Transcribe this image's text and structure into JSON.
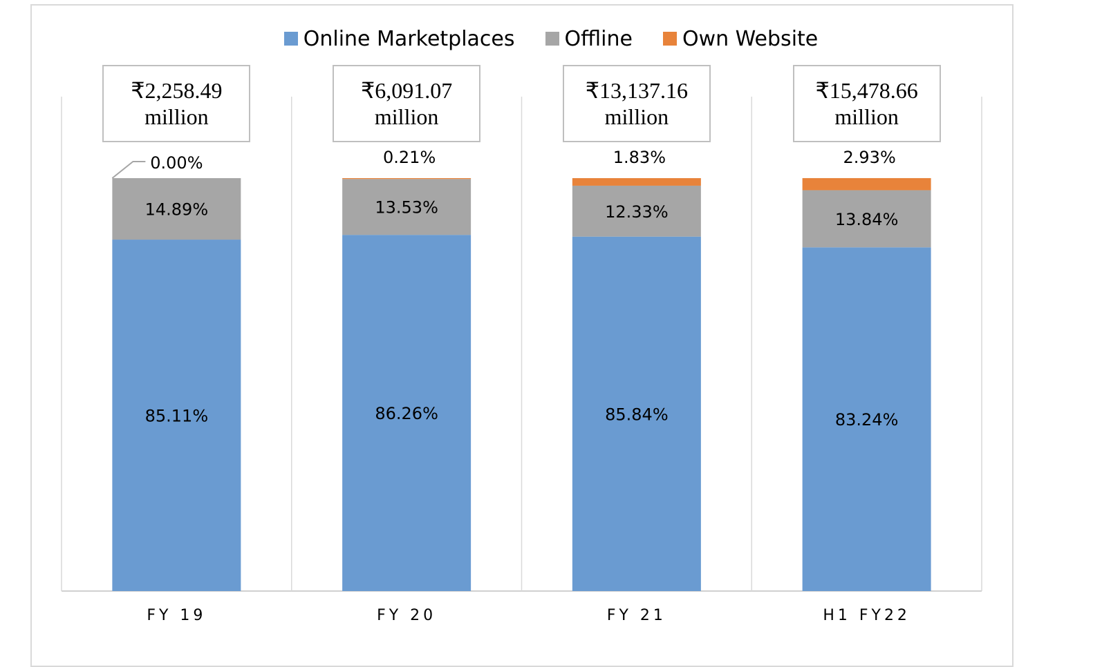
{
  "chart_data": {
    "type": "bar",
    "stacked": true,
    "normalized_percent": true,
    "categories": [
      "FY 19",
      "FY 20",
      "FY 21",
      "H1 FY22"
    ],
    "series": [
      {
        "name": "Online Marketplaces",
        "color": "#6a9bd1",
        "values": [
          85.11,
          86.26,
          85.84,
          83.24
        ],
        "labels": [
          "85.11%",
          "86.26%",
          "85.84%",
          "83.24%"
        ]
      },
      {
        "name": "Offline",
        "color": "#a6a6a6",
        "values": [
          14.89,
          13.53,
          12.33,
          13.84
        ],
        "labels": [
          "14.89%",
          "13.53%",
          "12.33%",
          "13.84%"
        ]
      },
      {
        "name": "Own Website",
        "color": "#e8833a",
        "values": [
          0.0,
          0.21,
          1.83,
          2.93
        ],
        "labels": [
          "0.00%",
          "0.21%",
          "1.83%",
          "2.93%"
        ]
      }
    ],
    "totals": [
      {
        "amount": "₹2,258.49",
        "unit": "million"
      },
      {
        "amount": "₹6,091.07",
        "unit": "million"
      },
      {
        "amount": "₹13,137.16",
        "unit": "million"
      },
      {
        "amount": "₹15,478.66",
        "unit": "million"
      }
    ],
    "legend_position": "top",
    "grid": false,
    "ylim": [
      0,
      100
    ]
  }
}
